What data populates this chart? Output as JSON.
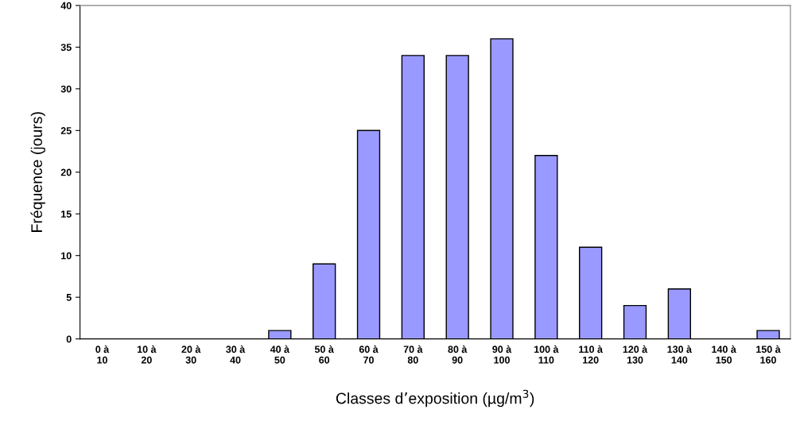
{
  "chart_data": {
    "type": "bar",
    "xlabel": "Classes d’exposition (µg/m$^{3}$)",
    "ylabel": "Fréquence (jours)",
    "categories": [
      "0 à\n10",
      "10 à\n20",
      "20 à\n30",
      "30 à\n40",
      "40 à\n50",
      "50 à\n60",
      "60 à\n70",
      "70 à\n80",
      "80 à\n90",
      "90 à\n100",
      "100 à\n110",
      "110 à\n120",
      "120 à\n130",
      "130 à\n140",
      "140 à\n150",
      "150 à\n160"
    ],
    "values": [
      0,
      0,
      0,
      0,
      1,
      9,
      25,
      34,
      34,
      36,
      22,
      11,
      4,
      6,
      0,
      1
    ],
    "color": "#9999ff",
    "ylim": [
      0,
      40
    ],
    "yticks": [
      0,
      5,
      10,
      15,
      20,
      25,
      30,
      35,
      40
    ],
    "grid": false,
    "legend": false
  }
}
